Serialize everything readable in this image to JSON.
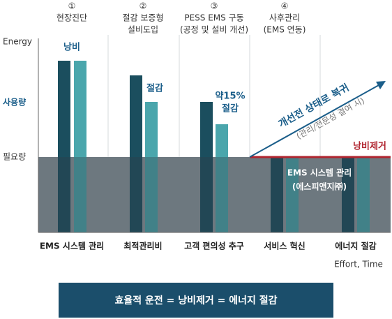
{
  "steps": [
    {
      "marker": "①",
      "lines": [
        "현장진단"
      ]
    },
    {
      "marker": "②",
      "lines": [
        "절감 보증형",
        "설비도입"
      ]
    },
    {
      "marker": "③",
      "lines": [
        "PESS EMS 구동",
        "(공정 및 설비 개선)"
      ]
    },
    {
      "marker": "④",
      "lines": [
        "사후관리",
        "(EMS 연동)"
      ]
    }
  ],
  "y_labels": [
    "Energy",
    "사용량",
    "필요량"
  ],
  "annotations": {
    "waste": "낭비",
    "saving": "절감",
    "saving_15": [
      "약15%",
      "절감"
    ],
    "waste_removal": "낭비제거",
    "trend": "개선전 상태로 복귀",
    "trend_note": "(관리/전문성 결여 시)",
    "ems": [
      "EMS 시스템 관리",
      "(에스피앤지㈜)"
    ]
  },
  "categories": [
    "EMS 시스템 관리",
    "최적관리비",
    "고객 편의성 추구",
    "서비스 혁신",
    "에너지 절감"
  ],
  "x_axis_label": "Effort, Time",
  "banner": "효율적 운전 = 낭비제거 = 에너지 절감"
}
